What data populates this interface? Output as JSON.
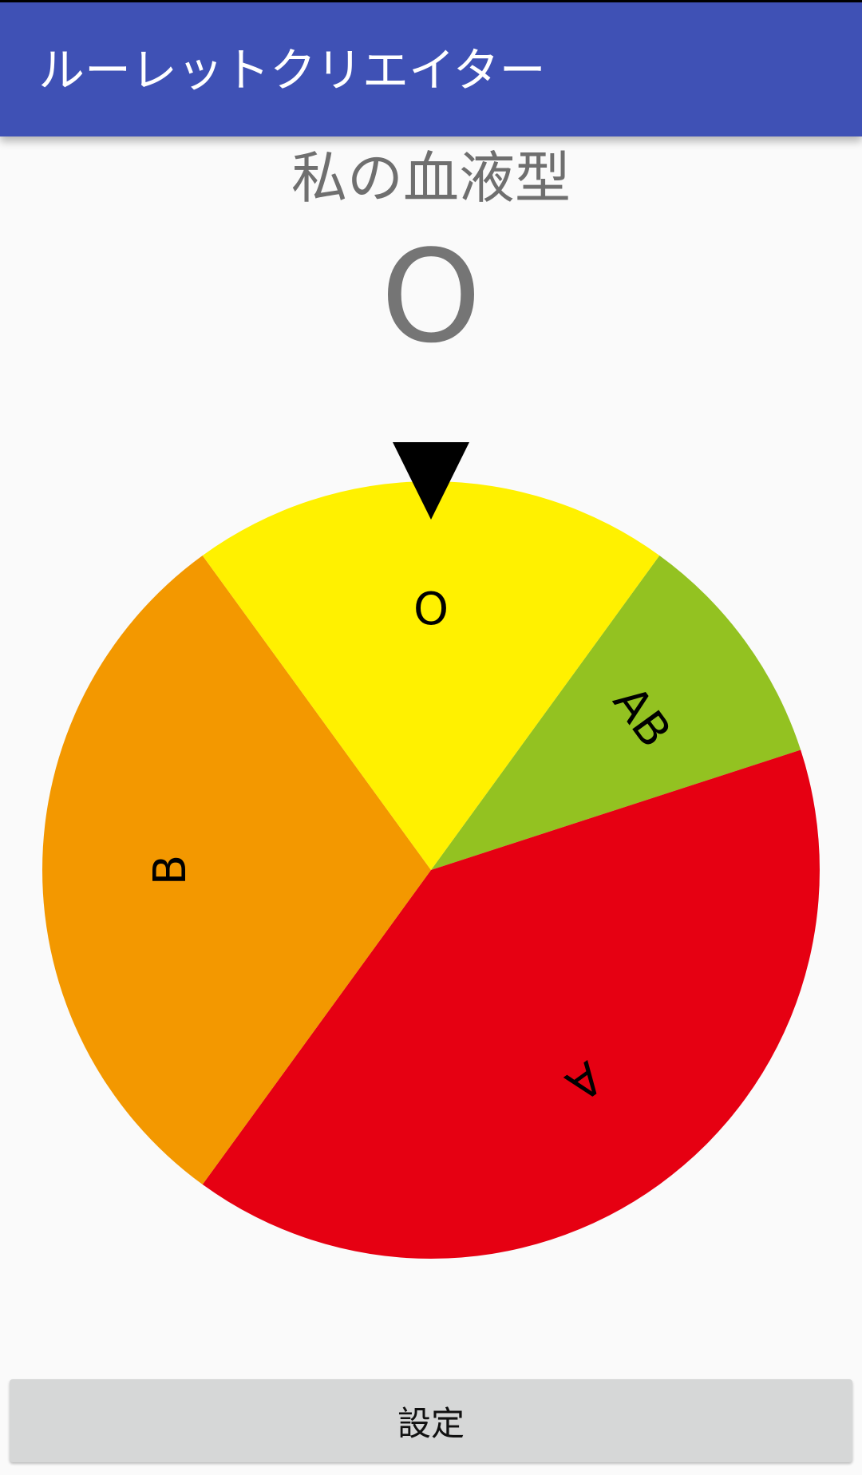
{
  "app_bar": {
    "title": "ルーレットクリエイター",
    "color": "#3f51b5"
  },
  "roulette": {
    "name": "私の血液型",
    "result": "O",
    "pointer_icon": "down-triangle-icon"
  },
  "chart_data": {
    "type": "pie",
    "title": "私の血液型",
    "start_angle_deg": -54,
    "direction": "clockwise",
    "segments": [
      {
        "label": "AB",
        "percent": 10,
        "color": "#93c221"
      },
      {
        "label": "A",
        "percent": 40,
        "color": "#e60012"
      },
      {
        "label": "B",
        "percent": 30,
        "color": "#f39800"
      },
      {
        "label": "O",
        "percent": 20,
        "color": "#fff100"
      }
    ]
  },
  "footer": {
    "settings_label": "設定"
  }
}
